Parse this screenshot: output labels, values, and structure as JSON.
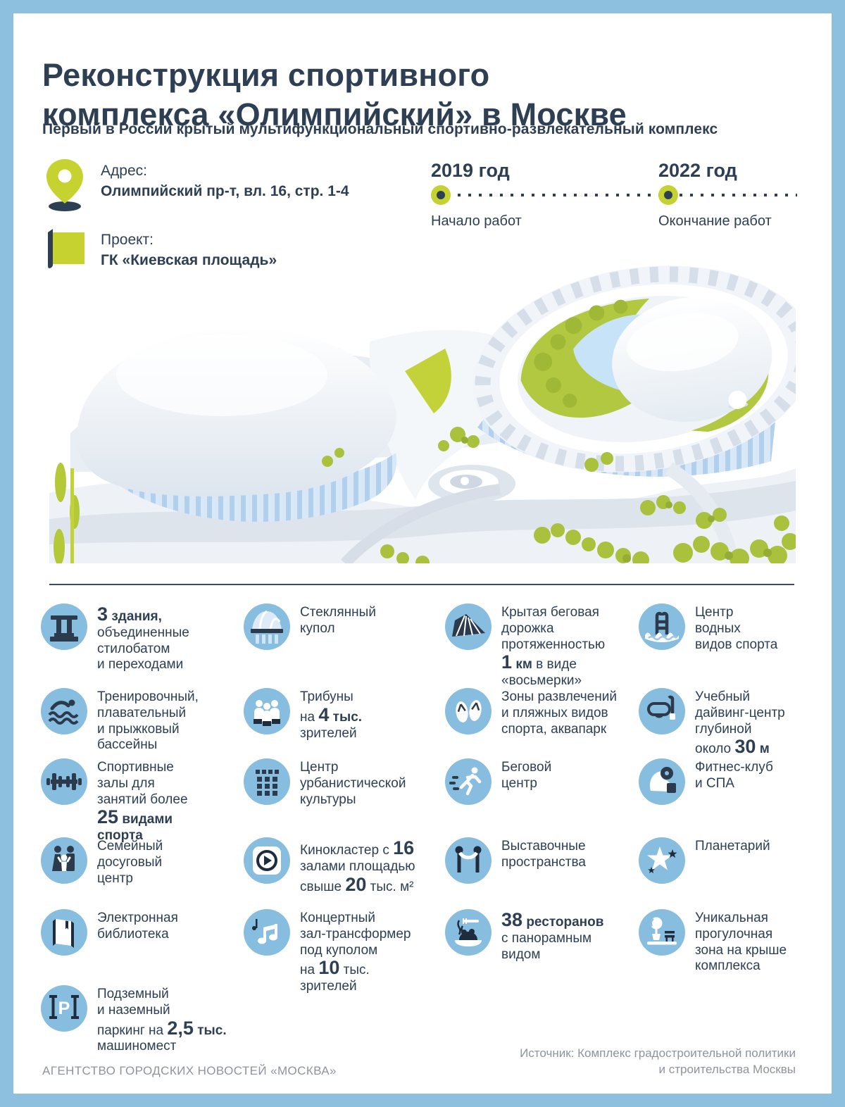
{
  "meta": {
    "frame_color": "#8cc0de",
    "accent_lime": "#c5d22f",
    "icon_circle_blue": "#87bedf",
    "navy": "#2e3f54",
    "footer_gray": "#8d949d"
  },
  "header": {
    "title": "Реконструкция спортивного\nкомплекса «Олимпийский» в Москве",
    "subtitle": "Первый в России крытый мультифункциональный спортивно-развлекательный комплекс"
  },
  "info": {
    "address_icon": "location-pin-icon",
    "address_label": "Адрес:",
    "address_value": "Олимпийский пр-т, вл. 16, стр. 1-4",
    "project_icon": "project-flag-icon",
    "project_label": "Проект:",
    "project_value": "ГК «Киевская площадь»"
  },
  "timeline": {
    "start": {
      "year": "2019 год",
      "label": "Начало работ"
    },
    "end": {
      "year": "2022 год",
      "label": "Окончание работ"
    }
  },
  "features": [
    {
      "icon": "stylobate-icon",
      "text": "##3## **здания,**\nобъединенные\nстилобатом\nи переходами"
    },
    {
      "icon": "glass-dome-icon",
      "text": "Стеклянный\nкупол"
    },
    {
      "icon": "running-track-icon",
      "text": "Крытая беговая\nдорожка\nпротяженностью\n##1## **км** в виде\n«восьмерки»"
    },
    {
      "icon": "water-sports-icon",
      "text": "Центр\nводных\nвидов спорта"
    },
    {
      "icon": "swimmer-icon",
      "text": "Тренировочный,\nплавательный\nи прыжковый\nбассейны"
    },
    {
      "icon": "tribunes-icon",
      "text": "Трибуны\nна ##4## **тыс.**\nзрителей"
    },
    {
      "icon": "beach-icon",
      "text": "Зоны развлечений\nи пляжных видов\nспорта, аквапарк"
    },
    {
      "icon": "diving-icon",
      "text": "Учебный\nдайвинг-центр\nглубиной\nоколо ##30## **м**"
    },
    {
      "icon": "dumbbell-icon",
      "text": "Спортивные\nзалы для\nзанятий более\n##25## **видами**\n**спорта**"
    },
    {
      "icon": "urban-culture-icon",
      "text": "Центр\nурбанистической\nкультуры"
    },
    {
      "icon": "runner-icon",
      "text": "Беговой\nцентр"
    },
    {
      "icon": "fitness-icon",
      "text": "Фитнес-клуб\nи СПА"
    },
    {
      "icon": "family-icon",
      "text": "Семейный\nдосуговый\nцентр"
    },
    {
      "icon": "cinema-icon",
      "text": "Кинокластер с ##16##\nзалами площадью\nсвыше ##20## тыс. м²"
    },
    {
      "icon": "exhibition-icon",
      "text": "Выставочные\nпространства"
    },
    {
      "icon": "planetarium-icon",
      "text": "Планетарий"
    },
    {
      "icon": "library-icon",
      "text": "Электронная\nбиблиотека"
    },
    {
      "icon": "concert-icon",
      "text": "Концертный\nзал-трансформер\nпод куполом\nна ##10## тыс.\nзрителей"
    },
    {
      "icon": "restaurants-icon",
      "text": "##38## **ресторанов**\nс панорамным\nвидом"
    },
    {
      "icon": "roof-walk-icon",
      "text": "Уникальная\nпрогулочная\nзона на крыше\nкомплекса"
    },
    {
      "icon": "parking-icon",
      "text": "Подземный\nи наземный\nпаркинг на ##2,5## **тыс.**\nмашиномест"
    }
  ],
  "footer": {
    "agency": "АГЕНТСТВО ГОРОДСКИХ НОВОСТЕЙ «МОСКВА»",
    "source": "Источник: Комплекс градостроительной политики\nи строительства Москвы"
  }
}
